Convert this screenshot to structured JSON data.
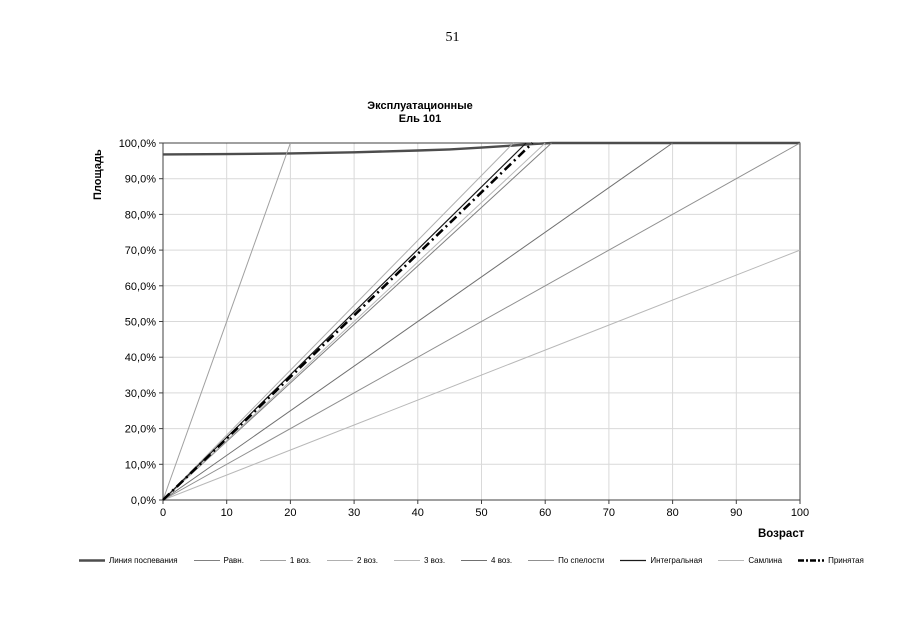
{
  "page": {
    "number": "51"
  },
  "chart_data": {
    "type": "line",
    "title": "Эксплуатационные",
    "subtitle": "Ель 101",
    "xlabel": "Возраст",
    "ylabel": "Площадь",
    "xlim": [
      0,
      100
    ],
    "ylim": [
      0,
      100
    ],
    "grid": true,
    "legend_position": "bottom",
    "x_ticks": [
      0,
      10,
      20,
      30,
      40,
      50,
      60,
      70,
      80,
      90,
      100
    ],
    "x_tick_labels": [
      "0",
      "10",
      "20",
      "30",
      "40",
      "50",
      "60",
      "70",
      "80",
      "90",
      "100"
    ],
    "y_ticks": [
      0,
      10,
      20,
      30,
      40,
      50,
      60,
      70,
      80,
      90,
      100
    ],
    "y_tick_labels": [
      "0,0%",
      "10,0%",
      "20,0%",
      "30,0%",
      "40,0%",
      "50,0%",
      "60,0%",
      "70,0%",
      "80,0%",
      "90,0%",
      "100,0%"
    ],
    "series": [
      {
        "name": "Линия поспевания",
        "color": "#4d4d4d",
        "width": 2.4,
        "dash": "",
        "points": [
          [
            0,
            96.8
          ],
          [
            10,
            96.9
          ],
          [
            20,
            97.1
          ],
          [
            30,
            97.4
          ],
          [
            40,
            97.9
          ],
          [
            45,
            98.2
          ],
          [
            50,
            98.7
          ],
          [
            55,
            99.3
          ],
          [
            58,
            99.7
          ],
          [
            61,
            100
          ],
          [
            100,
            100
          ]
        ]
      },
      {
        "name": "Равн.",
        "color": "#808080",
        "width": 1,
        "dash": "",
        "points": [
          [
            0,
            0
          ],
          [
            61,
            100
          ]
        ]
      },
      {
        "name": "1 воз.",
        "color": "#a0a0a0",
        "width": 1,
        "dash": "",
        "points": [
          [
            0,
            0
          ],
          [
            20,
            100
          ]
        ]
      },
      {
        "name": "2 воз.",
        "color": "#b0b0b0",
        "width": 1,
        "dash": "",
        "points": [
          [
            0,
            0
          ],
          [
            55,
            100
          ]
        ]
      },
      {
        "name": "3 воз.",
        "color": "#b8b8b8",
        "width": 1,
        "dash": "",
        "points": [
          [
            0,
            0
          ],
          [
            60,
            100
          ]
        ]
      },
      {
        "name": "4 воз.",
        "color": "#707070",
        "width": 1,
        "dash": "",
        "points": [
          [
            0,
            0
          ],
          [
            80,
            100
          ]
        ]
      },
      {
        "name": "По спелости",
        "color": "#909090",
        "width": 1,
        "dash": "",
        "points": [
          [
            0,
            0
          ],
          [
            100,
            100
          ]
        ]
      },
      {
        "name": "Интегральная",
        "color": "#1a1a1a",
        "width": 1.2,
        "dash": "",
        "points": [
          [
            0,
            0
          ],
          [
            57,
            100
          ]
        ]
      },
      {
        "name": "Самлина",
        "color": "#b8b8b8",
        "width": 1,
        "dash": "",
        "points": [
          [
            0,
            0
          ],
          [
            100,
            70
          ]
        ]
      },
      {
        "name": "Принятая",
        "color": "#000000",
        "width": 2.6,
        "dash": "9 4 2 4",
        "points": [
          [
            0,
            0
          ],
          [
            58,
            100
          ]
        ]
      }
    ]
  }
}
